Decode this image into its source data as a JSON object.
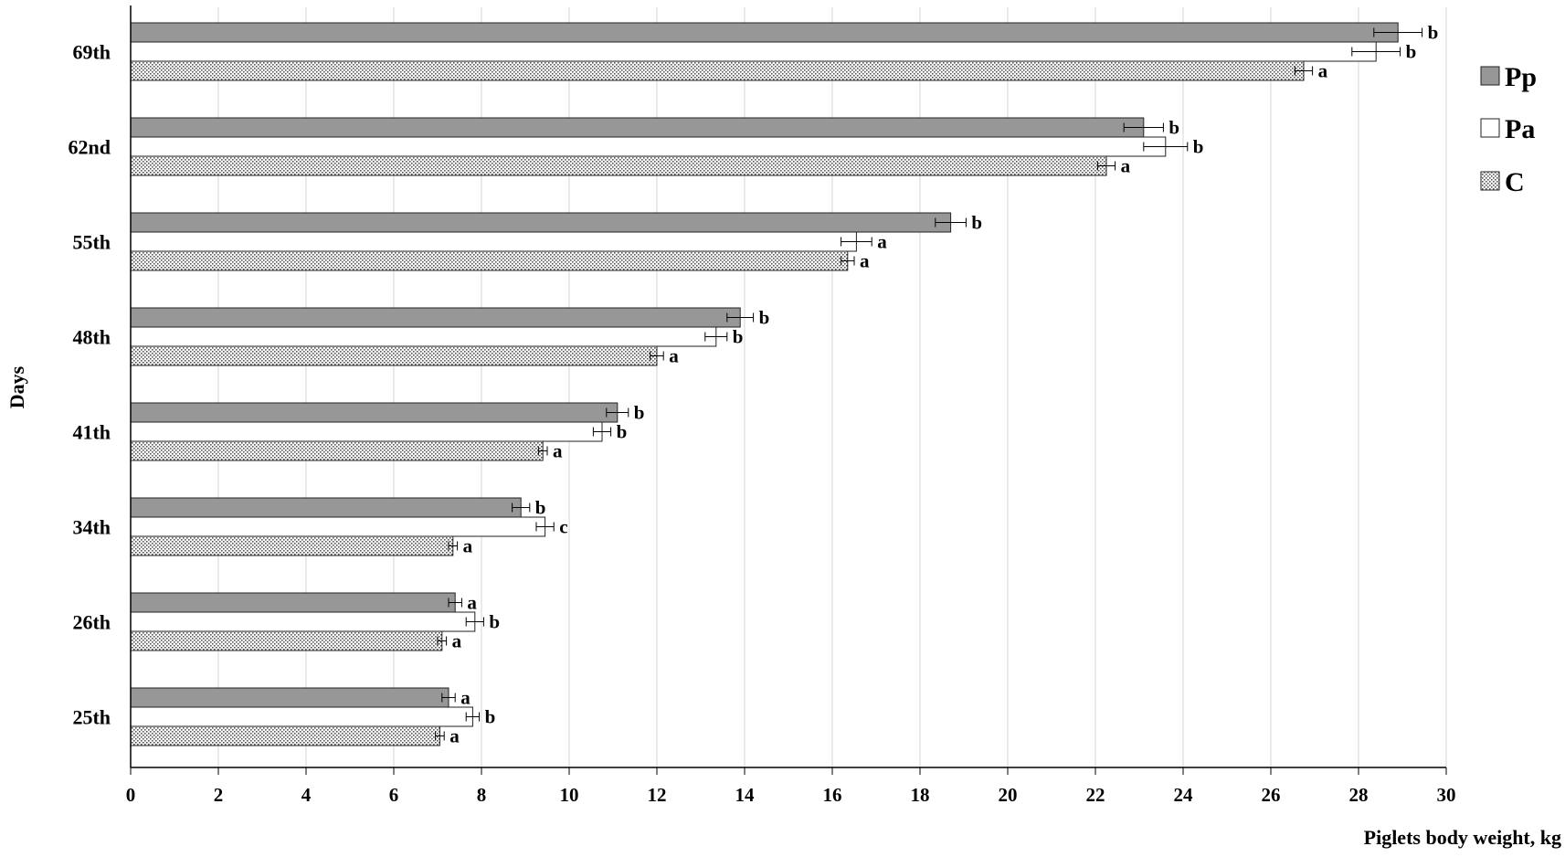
{
  "chart_data": {
    "type": "bar",
    "orientation": "horizontal",
    "categories": [
      "69th",
      "62nd",
      "55th",
      "48th",
      "41th",
      "34th",
      "26th",
      "25th"
    ],
    "series": [
      {
        "name": "Pp",
        "values": [
          28.9,
          23.1,
          18.7,
          13.9,
          11.1,
          8.9,
          7.4,
          7.25
        ],
        "errors": [
          0.55,
          0.45,
          0.35,
          0.3,
          0.25,
          0.2,
          0.15,
          0.15
        ],
        "labels": [
          "b",
          "b",
          "b",
          "b",
          "b",
          "b",
          "a",
          "a"
        ]
      },
      {
        "name": "Pa",
        "values": [
          28.4,
          23.6,
          16.55,
          13.35,
          10.75,
          9.45,
          7.85,
          7.8
        ],
        "errors": [
          0.55,
          0.5,
          0.35,
          0.25,
          0.2,
          0.2,
          0.2,
          0.15
        ],
        "labels": [
          "b",
          "b",
          "a",
          "b",
          "b",
          "c",
          "b",
          "b"
        ]
      },
      {
        "name": "C",
        "values": [
          26.75,
          22.25,
          16.35,
          12.0,
          9.4,
          7.35,
          7.1,
          7.05
        ],
        "errors": [
          0.2,
          0.2,
          0.15,
          0.15,
          0.1,
          0.1,
          0.1,
          0.1
        ],
        "labels": [
          "a",
          "a",
          "a",
          "a",
          "a",
          "a",
          "a",
          "a"
        ]
      }
    ],
    "xlabel": "Piglets body weight, kg",
    "ylabel": "Days",
    "xlim": [
      0,
      30
    ],
    "xticks": [
      "0",
      "2",
      "4",
      "6",
      "8",
      "10",
      "12",
      "14",
      "16",
      "18",
      "20",
      "22",
      "24",
      "26",
      "28",
      "30"
    ],
    "grid": "vertical",
    "legend": "right",
    "colors": {
      "Pp": "#979797",
      "Pa": "#ffffff",
      "C": "#e6e6e6"
    },
    "fill_patterns": {
      "Pp": "solid",
      "Pa": "solid",
      "C": "dotted"
    }
  }
}
